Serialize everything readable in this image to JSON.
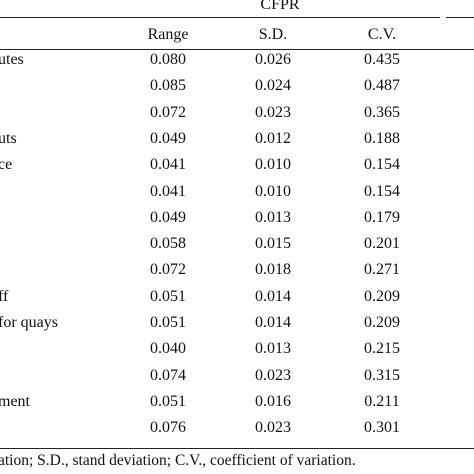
{
  "table": {
    "group_header": "CFPR",
    "columns": [
      "Range",
      "S.D.",
      "C.V."
    ],
    "rows": [
      {
        "label": "utes",
        "values": [
          "0.080",
          "0.026",
          "0.435"
        ]
      },
      {
        "label": "",
        "values": [
          "0.085",
          "0.024",
          "0.487"
        ]
      },
      {
        "label": "",
        "values": [
          "0.072",
          "0.023",
          "0.365"
        ]
      },
      {
        "label": "uts",
        "values": [
          "0.049",
          "0.012",
          "0.188"
        ]
      },
      {
        "label": "ce",
        "values": [
          "0.041",
          "0.010",
          "0.154"
        ]
      },
      {
        "label": "",
        "values": [
          "0.041",
          "0.010",
          "0.154"
        ]
      },
      {
        "label": "",
        "values": [
          "0.049",
          "0.013",
          "0.179"
        ]
      },
      {
        "label": "",
        "values": [
          "0.058",
          "0.015",
          "0.201"
        ]
      },
      {
        "label": "",
        "values": [
          "0.072",
          "0.018",
          "0.271"
        ]
      },
      {
        "label": "ff",
        "values": [
          "0.051",
          "0.014",
          "0.209"
        ]
      },
      {
        "label": "for quays",
        "values": [
          "0.051",
          "0.014",
          "0.209"
        ]
      },
      {
        "label": "",
        "values": [
          "0.040",
          "0.013",
          "0.215"
        ]
      },
      {
        "label": "",
        "values": [
          "0.074",
          "0.023",
          "0.315"
        ]
      },
      {
        "label": "ment",
        "values": [
          "0.051",
          "0.016",
          "0.211"
        ]
      },
      {
        "label": "",
        "values": [
          "0.076",
          "0.023",
          "0.301"
        ]
      }
    ],
    "footnote": "ation; S.D., stand deviation; C.V., coefficient of variation."
  }
}
